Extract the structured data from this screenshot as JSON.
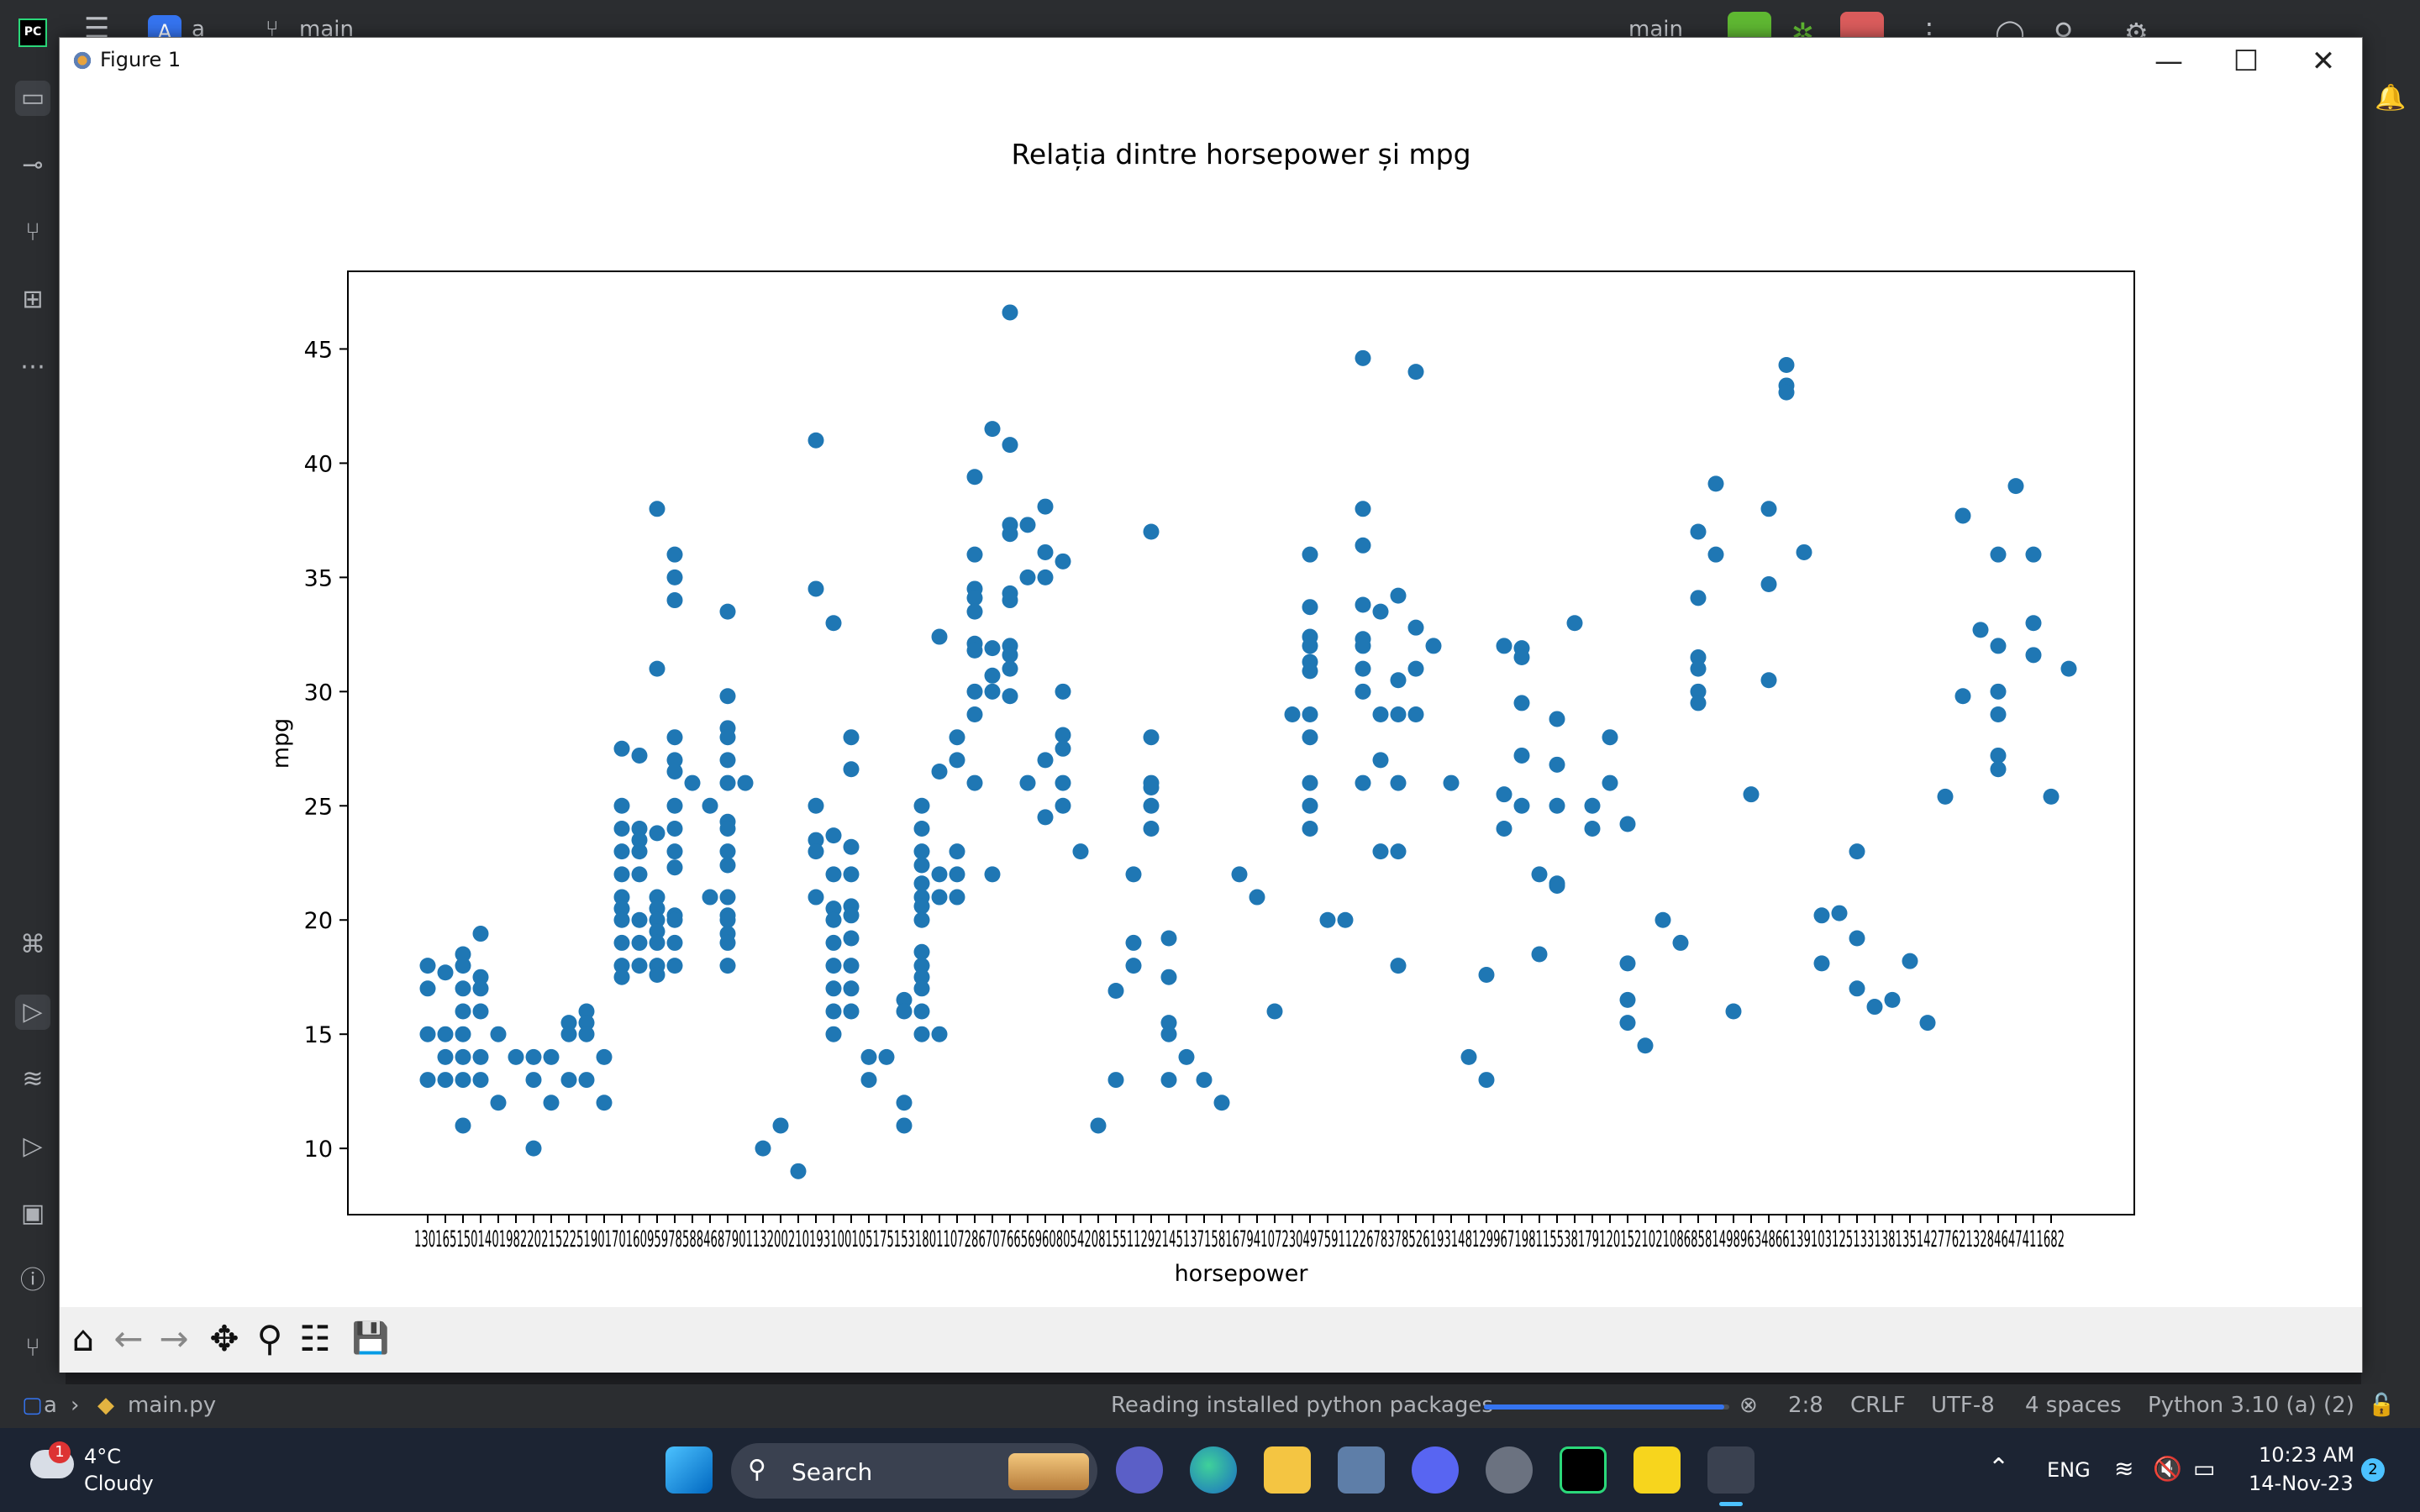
{
  "ide": {
    "project_letter": "A",
    "project_name": "a",
    "branch": "main",
    "run_config": "main"
  },
  "figure_window": {
    "title": "Figure 1",
    "minimize_glyph": "—",
    "maximize_glyph": "☐",
    "close_glyph": "✕"
  },
  "chart_data": {
    "type": "scatter",
    "title": "Relația dintre horsepower și mpg",
    "xlabel": "horsepower",
    "ylabel": "mpg",
    "ylim": [
      7.1,
      48.4
    ],
    "yticks": [
      10,
      15,
      20,
      25,
      30,
      35,
      40,
      45
    ],
    "grid": false,
    "color": "#1f77b4",
    "x_categories": [
      "130",
      "165",
      "150",
      "140",
      "198",
      "220",
      "215",
      "225",
      "190",
      "170",
      "160",
      "95",
      "97",
      "85",
      "88",
      "46",
      "87",
      "90",
      "113",
      "200",
      "210",
      "193",
      "100",
      "105",
      "175",
      "153",
      "180",
      "110",
      "72",
      "86",
      "70",
      "76",
      "65",
      "69",
      "60",
      "80",
      "54",
      "208",
      "155",
      "112",
      "92",
      "145",
      "137",
      "158",
      "167",
      "94",
      "107",
      "230",
      "49",
      "75",
      "91",
      "122",
      "67",
      "83",
      "78",
      "52",
      "61",
      "93",
      "148",
      "129",
      "96",
      "71",
      "98",
      "115",
      "53",
      "81",
      "79",
      "120",
      "152",
      "102",
      "108",
      "68",
      "58",
      "149",
      "89",
      "63",
      "48",
      "66",
      "139",
      "103",
      "125",
      "133",
      "138",
      "135",
      "142",
      "77",
      "62",
      "132",
      "84",
      "64",
      "74",
      "116",
      "82"
    ],
    "x_tick_labels_visible": "130165150140198220215225190170160959785884687901132002101931001051751531801107286707665696080542081551129214513715816794107230497591122678378526193148129967198115538179120152102108685814989634866139103125133138135142776213284647411682",
    "points": [
      [
        0,
        18
      ],
      [
        0,
        17
      ],
      [
        0,
        15
      ],
      [
        0,
        13
      ],
      [
        1,
        17.7
      ],
      [
        1,
        15
      ],
      [
        1,
        14
      ],
      [
        1,
        13
      ],
      [
        2,
        18.5
      ],
      [
        2,
        18
      ],
      [
        2,
        17
      ],
      [
        2,
        16
      ],
      [
        2,
        15
      ],
      [
        2,
        14
      ],
      [
        2,
        13
      ],
      [
        2,
        11
      ],
      [
        3,
        19.4
      ],
      [
        3,
        17.5
      ],
      [
        3,
        17
      ],
      [
        3,
        16
      ],
      [
        3,
        14
      ],
      [
        3,
        13
      ],
      [
        4,
        15
      ],
      [
        4,
        12
      ],
      [
        5,
        14
      ],
      [
        6,
        14
      ],
      [
        6,
        13
      ],
      [
        6,
        10
      ],
      [
        7,
        14
      ],
      [
        7,
        12
      ],
      [
        8,
        15.5
      ],
      [
        8,
        15
      ],
      [
        8,
        13
      ],
      [
        9,
        16
      ],
      [
        9,
        15.5
      ],
      [
        9,
        15
      ],
      [
        9,
        13
      ],
      [
        10,
        14
      ],
      [
        10,
        12
      ],
      [
        11,
        27.5
      ],
      [
        11,
        25
      ],
      [
        11,
        24
      ],
      [
        11,
        23
      ],
      [
        11,
        22
      ],
      [
        11,
        21
      ],
      [
        11,
        20.5
      ],
      [
        11,
        20
      ],
      [
        11,
        19
      ],
      [
        11,
        18
      ],
      [
        11,
        17.5
      ],
      [
        12,
        27.2
      ],
      [
        12,
        24
      ],
      [
        12,
        23.5
      ],
      [
        12,
        23
      ],
      [
        12,
        22
      ],
      [
        12,
        20
      ],
      [
        12,
        19
      ],
      [
        12,
        18
      ],
      [
        13,
        38
      ],
      [
        13,
        31
      ],
      [
        13,
        23.8
      ],
      [
        13,
        21
      ],
      [
        13,
        20.5
      ],
      [
        13,
        20
      ],
      [
        13,
        19.5
      ],
      [
        13,
        19
      ],
      [
        13,
        18
      ],
      [
        13,
        17.6
      ],
      [
        14,
        36
      ],
      [
        14,
        35
      ],
      [
        14,
        34
      ],
      [
        14,
        28
      ],
      [
        14,
        27
      ],
      [
        14,
        26.5
      ],
      [
        14,
        25
      ],
      [
        14,
        24
      ],
      [
        14,
        23
      ],
      [
        14,
        22.3
      ],
      [
        14,
        20.2
      ],
      [
        14,
        20
      ],
      [
        14,
        19
      ],
      [
        14,
        18
      ],
      [
        15,
        26
      ],
      [
        16,
        25
      ],
      [
        16,
        21
      ],
      [
        17,
        33.5
      ],
      [
        17,
        29.8
      ],
      [
        17,
        28.4
      ],
      [
        17,
        28
      ],
      [
        17,
        27
      ],
      [
        17,
        26
      ],
      [
        17,
        24.3
      ],
      [
        17,
        24
      ],
      [
        17,
        23
      ],
      [
        17,
        22.4
      ],
      [
        17,
        21
      ],
      [
        17,
        20.2
      ],
      [
        17,
        20
      ],
      [
        17,
        19.4
      ],
      [
        17,
        19
      ],
      [
        17,
        18
      ],
      [
        18,
        26
      ],
      [
        19,
        10
      ],
      [
        20,
        11
      ],
      [
        21,
        9
      ],
      [
        22,
        41
      ],
      [
        22,
        34.5
      ],
      [
        22,
        25
      ],
      [
        22,
        23.5
      ],
      [
        22,
        23
      ],
      [
        22,
        21
      ],
      [
        23,
        33
      ],
      [
        23,
        23.7
      ],
      [
        23,
        22
      ],
      [
        23,
        20.5
      ],
      [
        23,
        20
      ],
      [
        23,
        19
      ],
      [
        23,
        18
      ],
      [
        23,
        17
      ],
      [
        23,
        16
      ],
      [
        23,
        15
      ],
      [
        24,
        28
      ],
      [
        24,
        26.6
      ],
      [
        24,
        23.2
      ],
      [
        24,
        22
      ],
      [
        24,
        20.6
      ],
      [
        24,
        20.2
      ],
      [
        24,
        19.2
      ],
      [
        24,
        18
      ],
      [
        24,
        17
      ],
      [
        24,
        16
      ],
      [
        25,
        14
      ],
      [
        25,
        13
      ],
      [
        26,
        14
      ],
      [
        27,
        16.5
      ],
      [
        27,
        16
      ],
      [
        27,
        12
      ],
      [
        27,
        11
      ],
      [
        28,
        25
      ],
      [
        28,
        24
      ],
      [
        28,
        23
      ],
      [
        28,
        22.4
      ],
      [
        28,
        21.6
      ],
      [
        28,
        21
      ],
      [
        28,
        20.6
      ],
      [
        28,
        20
      ],
      [
        28,
        18.6
      ],
      [
        28,
        18
      ],
      [
        28,
        17.5
      ],
      [
        28,
        17
      ],
      [
        28,
        16
      ],
      [
        28,
        15
      ],
      [
        29,
        32.4
      ],
      [
        29,
        26.5
      ],
      [
        29,
        22
      ],
      [
        29,
        21
      ],
      [
        29,
        15
      ],
      [
        30,
        28
      ],
      [
        30,
        27
      ],
      [
        30,
        23
      ],
      [
        30,
        22
      ],
      [
        30,
        21
      ],
      [
        31,
        39.4
      ],
      [
        31,
        36
      ],
      [
        31,
        34.5
      ],
      [
        31,
        34.1
      ],
      [
        31,
        33.5
      ],
      [
        31,
        32.1
      ],
      [
        31,
        31.8
      ],
      [
        31,
        30
      ],
      [
        31,
        29
      ],
      [
        31,
        26
      ],
      [
        32,
        41.5
      ],
      [
        32,
        31.9
      ],
      [
        32,
        30.7
      ],
      [
        32,
        30
      ],
      [
        32,
        22
      ],
      [
        33,
        46.6
      ],
      [
        33,
        40.8
      ],
      [
        33,
        37.3
      ],
      [
        33,
        36.9
      ],
      [
        33,
        34.3
      ],
      [
        33,
        34
      ],
      [
        33,
        32
      ],
      [
        33,
        31.6
      ],
      [
        33,
        31
      ],
      [
        33,
        29.8
      ],
      [
        34,
        37.3
      ],
      [
        34,
        35
      ],
      [
        34,
        26
      ],
      [
        35,
        38.1
      ],
      [
        35,
        36.1
      ],
      [
        35,
        35
      ],
      [
        35,
        27
      ],
      [
        35,
        24.5
      ],
      [
        36,
        35.7
      ],
      [
        36,
        30
      ],
      [
        36,
        28.1
      ],
      [
        36,
        27.5
      ],
      [
        36,
        26
      ],
      [
        36,
        25
      ],
      [
        37,
        23
      ],
      [
        38,
        11
      ],
      [
        39,
        13
      ],
      [
        39,
        16.9
      ],
      [
        40,
        22
      ],
      [
        40,
        19
      ],
      [
        40,
        18
      ],
      [
        41,
        37
      ],
      [
        41,
        28
      ],
      [
        41,
        26
      ],
      [
        41,
        25.8
      ],
      [
        41,
        25
      ],
      [
        41,
        24
      ],
      [
        42,
        19.2
      ],
      [
        42,
        17.5
      ],
      [
        42,
        15.5
      ],
      [
        42,
        15
      ],
      [
        42,
        13
      ],
      [
        43,
        14
      ],
      [
        44,
        13
      ],
      [
        45,
        12
      ],
      [
        46,
        22
      ],
      [
        47,
        21
      ],
      [
        48,
        16
      ],
      [
        49,
        29
      ],
      [
        50,
        36
      ],
      [
        50,
        33.7
      ],
      [
        50,
        32.4
      ],
      [
        50,
        32
      ],
      [
        50,
        31.3
      ],
      [
        50,
        30.9
      ],
      [
        50,
        29
      ],
      [
        50,
        28
      ],
      [
        50,
        26
      ],
      [
        50,
        25
      ],
      [
        50,
        24
      ],
      [
        51,
        20
      ],
      [
        52,
        20
      ],
      [
        53,
        44.6
      ],
      [
        53,
        38
      ],
      [
        53,
        36.4
      ],
      [
        53,
        33.8
      ],
      [
        53,
        32.3
      ],
      [
        53,
        32
      ],
      [
        53,
        31
      ],
      [
        53,
        30
      ],
      [
        53,
        26
      ],
      [
        54,
        33.5
      ],
      [
        54,
        29
      ],
      [
        54,
        27
      ],
      [
        54,
        23
      ],
      [
        55,
        34.2
      ],
      [
        55,
        30.5
      ],
      [
        55,
        29
      ],
      [
        55,
        26
      ],
      [
        55,
        23
      ],
      [
        55,
        18
      ],
      [
        56,
        44
      ],
      [
        56,
        32.8
      ],
      [
        56,
        31
      ],
      [
        56,
        29
      ],
      [
        57,
        32
      ],
      [
        58,
        26
      ],
      [
        59,
        14
      ],
      [
        60,
        17.6
      ],
      [
        60,
        13
      ],
      [
        61,
        32
      ],
      [
        61,
        25.5
      ],
      [
        61,
        24
      ],
      [
        62,
        31.9
      ],
      [
        62,
        31.5
      ],
      [
        62,
        29.5
      ],
      [
        62,
        27.2
      ],
      [
        62,
        25
      ],
      [
        63,
        22
      ],
      [
        63,
        18.5
      ],
      [
        64,
        28.8
      ],
      [
        64,
        26.8
      ],
      [
        64,
        25
      ],
      [
        64,
        21.6
      ],
      [
        64,
        21.5
      ],
      [
        65,
        33
      ],
      [
        66,
        25
      ],
      [
        66,
        24
      ],
      [
        67,
        28
      ],
      [
        67,
        26
      ],
      [
        68,
        24.2
      ],
      [
        68,
        18.1
      ],
      [
        68,
        16.5
      ],
      [
        68,
        15.5
      ],
      [
        69,
        14.5
      ],
      [
        70,
        20
      ],
      [
        71,
        19
      ],
      [
        72,
        37
      ],
      [
        72,
        34.1
      ],
      [
        72,
        31.5
      ],
      [
        72,
        31
      ],
      [
        72,
        30
      ],
      [
        72,
        29.5
      ],
      [
        73,
        39.1
      ],
      [
        73,
        36
      ],
      [
        74,
        16
      ],
      [
        75,
        25.5
      ],
      [
        76,
        38
      ],
      [
        76,
        34.7
      ],
      [
        76,
        30.5
      ],
      [
        77,
        44.3
      ],
      [
        77,
        43.4
      ],
      [
        77,
        43.1
      ],
      [
        78,
        36.1
      ],
      [
        79,
        20.2
      ],
      [
        79,
        18.1
      ],
      [
        80,
        20.3
      ],
      [
        81,
        23
      ],
      [
        81,
        19.2
      ],
      [
        81,
        17
      ],
      [
        82,
        16.2
      ],
      [
        83,
        16.5
      ],
      [
        84,
        18.2
      ],
      [
        85,
        15.5
      ],
      [
        86,
        25.4
      ],
      [
        87,
        37.7
      ],
      [
        87,
        29.8
      ],
      [
        88,
        32.7
      ],
      [
        89,
        36
      ],
      [
        89,
        32
      ],
      [
        89,
        30
      ],
      [
        89,
        29
      ],
      [
        89,
        27.2
      ],
      [
        89,
        26.6
      ],
      [
        90,
        39
      ],
      [
        91,
        36
      ],
      [
        91,
        33
      ],
      [
        91,
        31.6
      ],
      [
        92,
        25.4
      ],
      [
        93,
        31
      ]
    ]
  },
  "mpl_toolbar": {
    "home": "⌂",
    "back": "←",
    "forward": "→",
    "pan": "✥",
    "zoom": "⚲",
    "configure": "☷",
    "save": "💾"
  },
  "statusbar": {
    "breadcrumb_project": "a",
    "breadcrumb_file": "main.py",
    "progress_text": "Reading installed python packages",
    "progress_fraction": 0.98,
    "cursor": "2:8",
    "line_sep": "CRLF",
    "encoding": "UTF-8",
    "indent": "4 spaces",
    "interpreter": "Python 3.10 (a) (2)"
  },
  "taskbar": {
    "weather_temp": "4°C",
    "weather_desc": "Cloudy",
    "weather_badge": "1",
    "search_label": "Search",
    "language": "ENG",
    "time": "10:23 AM",
    "date": "14-Nov-23",
    "notif_count": "2"
  }
}
